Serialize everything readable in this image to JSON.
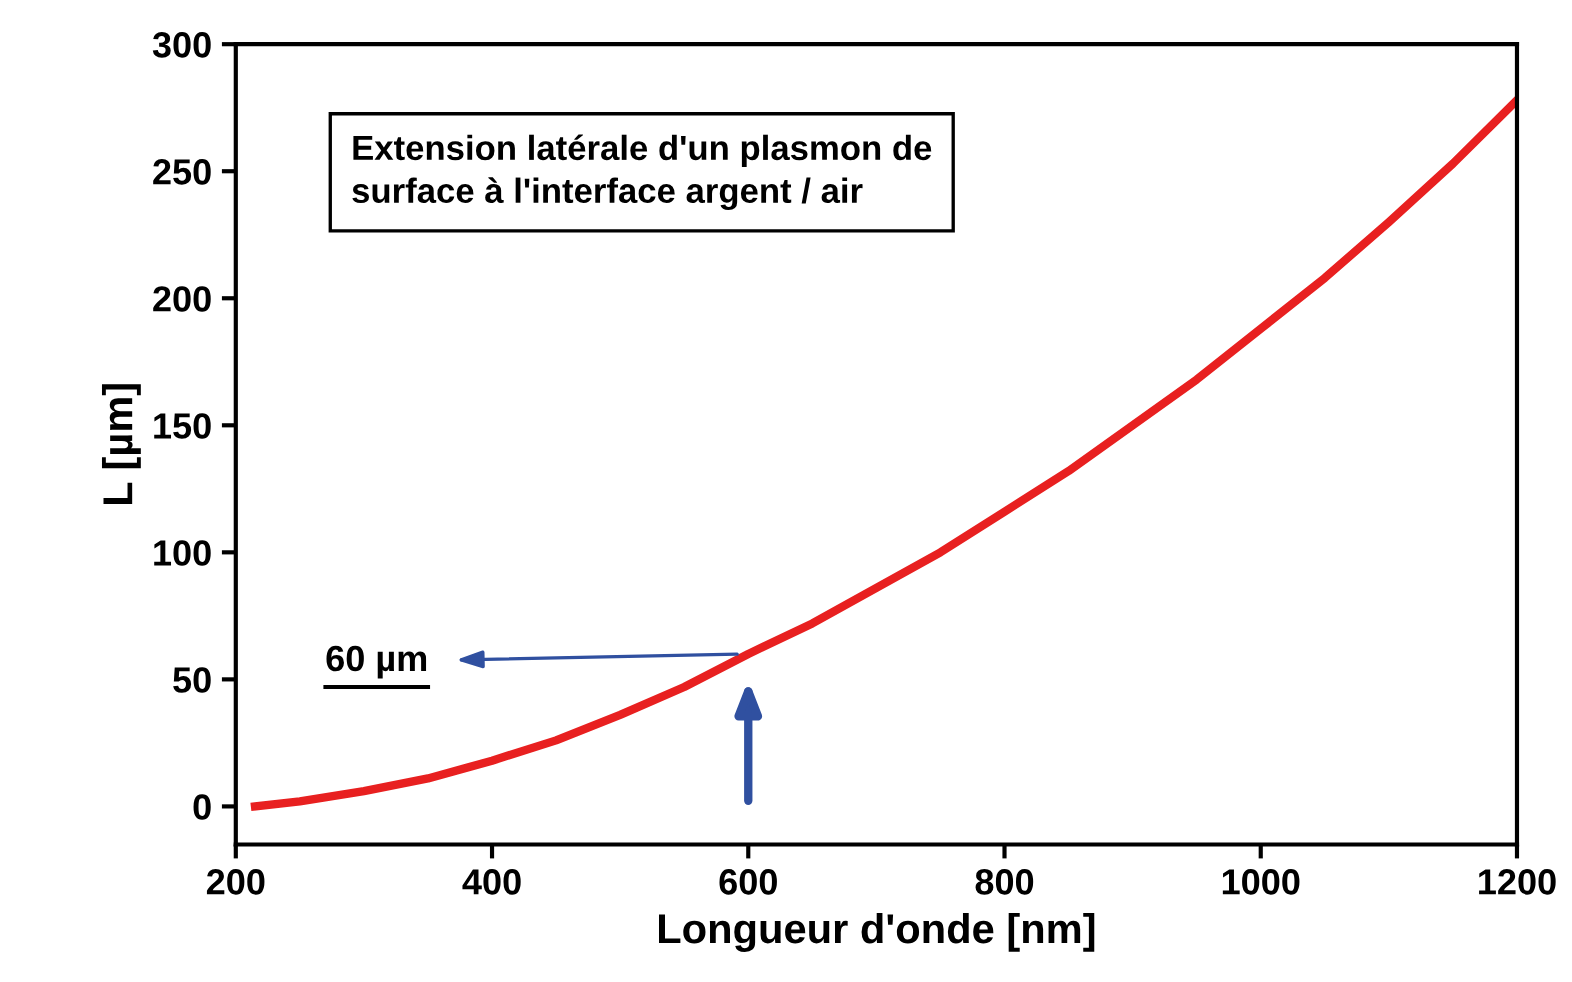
{
  "chart_data": {
    "type": "line",
    "xlabel": "Longueur d'onde [nm]",
    "ylabel": "L [µm]",
    "x": [
      215,
      250,
      300,
      350,
      400,
      450,
      500,
      550,
      600,
      650,
      700,
      750,
      800,
      850,
      900,
      950,
      1000,
      1050,
      1100,
      1150,
      1200
    ],
    "series": [
      {
        "color": "#e82020",
        "values": [
          0,
          2,
          6,
          11,
          18,
          26,
          36,
          47,
          60,
          72,
          86,
          100,
          116,
          132,
          150,
          168,
          188,
          208,
          230,
          253,
          278
        ]
      }
    ],
    "xlim": [
      200,
      1200
    ],
    "xticks": [
      200,
      400,
      600,
      800,
      1000,
      1200
    ],
    "ylim": [
      -15,
      300
    ],
    "yticks": [
      0,
      50,
      100,
      150,
      200,
      250,
      300
    ],
    "grid": false,
    "legend": false,
    "marker": "none",
    "line_style": "solid",
    "annotations": [
      "Extension latérale d'un plasmon de\nsurface à l'interface argent / air",
      {
        "text": "60 µm",
        "x": 600,
        "y": 60
      }
    ]
  }
}
